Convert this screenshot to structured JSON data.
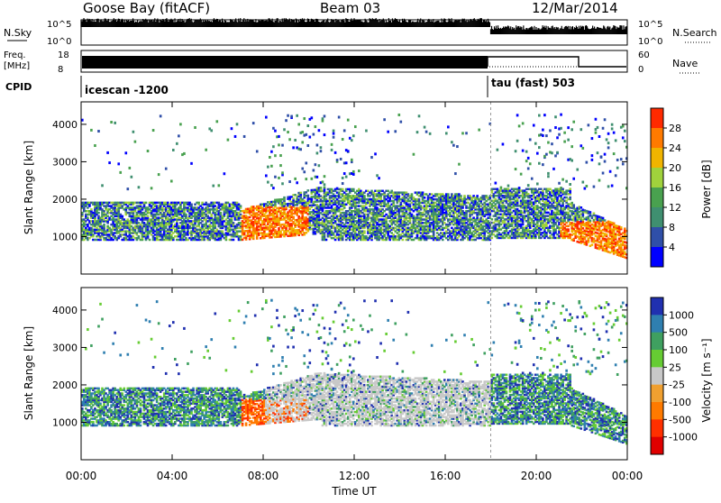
{
  "header": {
    "title": "Goose Bay (fitACF)",
    "beam": "Beam 03",
    "date": "12/Mar/2014"
  },
  "panels": {
    "noise": {
      "left_label": "N.Sky",
      "right_label": "N.Search",
      "left_ticks": [
        "10^5",
        "10^0"
      ],
      "right_ticks": [
        "10^5",
        "10^0"
      ]
    },
    "freq": {
      "left_label_1": "Freq.",
      "left_label_2": "[MHz]",
      "right_label": "Nave",
      "left_ticks": [
        "18",
        "8"
      ],
      "right_ticks": [
        "60",
        "0"
      ]
    },
    "cpid": {
      "label": "CPID",
      "segments": [
        {
          "text": "icescan -1200",
          "start": "00:00",
          "end": "18:00"
        },
        {
          "text": "tau (fast) 503",
          "start": "18:00",
          "end": "24:00"
        }
      ]
    }
  },
  "chart_data": [
    {
      "type": "heatmap",
      "name": "power",
      "ylabel": "Slant Range [km]",
      "yticks": [
        "1000",
        "2000",
        "3000",
        "4000"
      ],
      "ylim": [
        0,
        4600
      ],
      "colorbar_label": "Power [dB]",
      "colorbar_ticks": [
        "4",
        "8",
        "12",
        "16",
        "20",
        "24",
        "28"
      ],
      "colors": [
        "#0000ff",
        "#2f4fa8",
        "#3f8f70",
        "#49a14f",
        "#a0d23c",
        "#f0b400",
        "#ff7a00",
        "#ff2a00"
      ]
    },
    {
      "type": "heatmap",
      "name": "velocity",
      "ylabel": "Slant Range [km]",
      "yticks": [
        "1000",
        "2000",
        "3000",
        "4000"
      ],
      "ylim": [
        0,
        4600
      ],
      "colorbar_label": "Velocity [m s⁻¹]",
      "colorbar_ticks": [
        "1000",
        "500",
        "100",
        "25",
        "-25",
        "-100",
        "-500",
        "-1000"
      ],
      "colors": [
        "#2030b0",
        "#2f7fb0",
        "#3fa060",
        "#66cc33",
        "#c8c8c8",
        "#f0a030",
        "#ff7a00",
        "#ff3000",
        "#e00000"
      ]
    }
  ],
  "xaxis": {
    "label": "Time UT",
    "ticks": [
      "00:00",
      "04:00",
      "08:00",
      "12:00",
      "16:00",
      "20:00",
      "00:00"
    ],
    "xlim": [
      0,
      24
    ]
  }
}
